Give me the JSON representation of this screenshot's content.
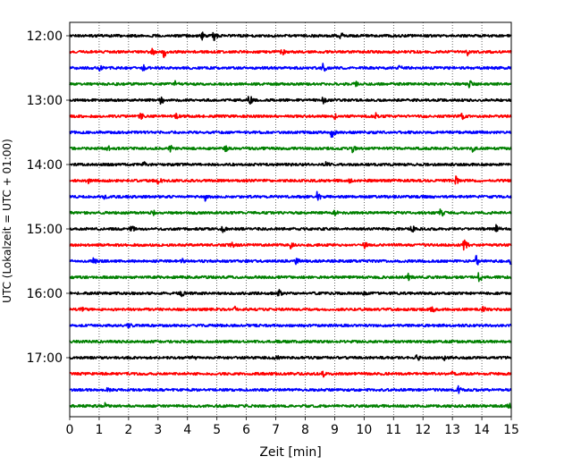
{
  "chart_data": {
    "type": "line",
    "title": "",
    "xlabel": "Zeit  [min]",
    "ylabel": "UTC (Lokalzeit = UTC + 01:00)",
    "xlim": [
      0,
      15
    ],
    "x_ticks": [
      "0",
      "1",
      "2",
      "3",
      "4",
      "5",
      "6",
      "7",
      "8",
      "9",
      "10",
      "11",
      "12",
      "13",
      "14",
      "15"
    ],
    "y_ticks": [
      "12:00",
      "13:00",
      "14:00",
      "15:00",
      "16:00",
      "17:00"
    ],
    "grid": {
      "vertical": "dotted",
      "horizontal": false
    },
    "trace_interval_min": 15,
    "colors": [
      "#000000",
      "#ff0000",
      "#0000ff",
      "#008000"
    ],
    "series": [
      {
        "start": "12:00",
        "color": "#000000",
        "events": [
          [
            4.5,
            5
          ],
          [
            4.9,
            6
          ],
          [
            9.2,
            5
          ]
        ]
      },
      {
        "start": "12:15",
        "color": "#ff0000",
        "events": [
          [
            2.8,
            5
          ],
          [
            3.2,
            7
          ],
          [
            7.2,
            5
          ],
          [
            13.5,
            6
          ]
        ]
      },
      {
        "start": "12:30",
        "color": "#0000ff",
        "events": [
          [
            1.0,
            5
          ],
          [
            2.5,
            4
          ],
          [
            8.6,
            6
          ],
          [
            11.2,
            4
          ]
        ]
      },
      {
        "start": "12:45",
        "color": "#008000",
        "events": [
          [
            3.6,
            5
          ],
          [
            9.7,
            5
          ],
          [
            13.6,
            7
          ]
        ]
      },
      {
        "start": "13:00",
        "color": "#000000",
        "events": [
          [
            3.1,
            6
          ],
          [
            6.1,
            7
          ],
          [
            8.6,
            6
          ]
        ]
      },
      {
        "start": "13:15",
        "color": "#ff0000",
        "events": [
          [
            2.4,
            6
          ],
          [
            3.6,
            6
          ],
          [
            9.0,
            4
          ],
          [
            10.4,
            4
          ],
          [
            13.3,
            6
          ]
        ]
      },
      {
        "start": "13:30",
        "color": "#0000ff",
        "events": [
          [
            8.9,
            7
          ]
        ]
      },
      {
        "start": "13:45",
        "color": "#008000",
        "events": [
          [
            1.3,
            4
          ],
          [
            3.4,
            5
          ],
          [
            5.3,
            5
          ],
          [
            9.6,
            5
          ],
          [
            13.7,
            6
          ]
        ]
      },
      {
        "start": "14:00",
        "color": "#000000",
        "events": [
          [
            2.5,
            4
          ],
          [
            8.7,
            5
          ]
        ]
      },
      {
        "start": "14:15",
        "color": "#ff0000",
        "events": [
          [
            0.6,
            6
          ],
          [
            3.0,
            6
          ],
          [
            9.5,
            4
          ],
          [
            13.1,
            6
          ]
        ]
      },
      {
        "start": "14:30",
        "color": "#0000ff",
        "events": [
          [
            1.2,
            5
          ],
          [
            4.6,
            5
          ],
          [
            8.4,
            7
          ]
        ]
      },
      {
        "start": "14:45",
        "color": "#008000",
        "events": [
          [
            2.8,
            5
          ],
          [
            9.0,
            5
          ],
          [
            12.6,
            6
          ]
        ]
      },
      {
        "start": "15:00",
        "color": "#000000",
        "events": [
          [
            2.1,
            5
          ],
          [
            5.2,
            5
          ],
          [
            11.6,
            6
          ],
          [
            14.5,
            8
          ]
        ]
      },
      {
        "start": "15:15",
        "color": "#ff0000",
        "events": [
          [
            5.5,
            6
          ],
          [
            7.5,
            5
          ],
          [
            10.0,
            5
          ],
          [
            13.4,
            7
          ]
        ]
      },
      {
        "start": "15:30",
        "color": "#0000ff",
        "events": [
          [
            0.8,
            5
          ],
          [
            3.8,
            4
          ],
          [
            7.7,
            5
          ],
          [
            13.8,
            7
          ],
          [
            15.0,
            6
          ]
        ]
      },
      {
        "start": "15:45",
        "color": "#008000",
        "events": [
          [
            11.5,
            5
          ],
          [
            13.9,
            7
          ]
        ]
      },
      {
        "start": "16:00",
        "color": "#000000",
        "events": [
          [
            3.8,
            5
          ],
          [
            7.1,
            5
          ],
          [
            10.0,
            4
          ]
        ]
      },
      {
        "start": "16:15",
        "color": "#ff0000",
        "events": [
          [
            0.4,
            5
          ],
          [
            5.6,
            4
          ],
          [
            12.3,
            5
          ],
          [
            14.0,
            6
          ]
        ]
      },
      {
        "start": "16:30",
        "color": "#0000ff",
        "events": [
          [
            2.0,
            6
          ]
        ]
      },
      {
        "start": "16:45",
        "color": "#008000",
        "events": [
          [
            8.2,
            3
          ]
        ]
      },
      {
        "start": "17:00",
        "color": "#000000",
        "events": [
          [
            4.2,
            4
          ],
          [
            7.0,
            5
          ],
          [
            11.8,
            5
          ],
          [
            12.7,
            4
          ]
        ]
      },
      {
        "start": "17:15",
        "color": "#ff0000",
        "events": [
          [
            8.6,
            5
          ],
          [
            13.0,
            4
          ]
        ]
      },
      {
        "start": "17:30",
        "color": "#0000ff",
        "events": [
          [
            1.3,
            4
          ],
          [
            13.2,
            5
          ]
        ]
      },
      {
        "start": "17:45",
        "color": "#008000",
        "events": [
          [
            1.2,
            4
          ],
          [
            14.9,
            5
          ]
        ]
      }
    ]
  }
}
